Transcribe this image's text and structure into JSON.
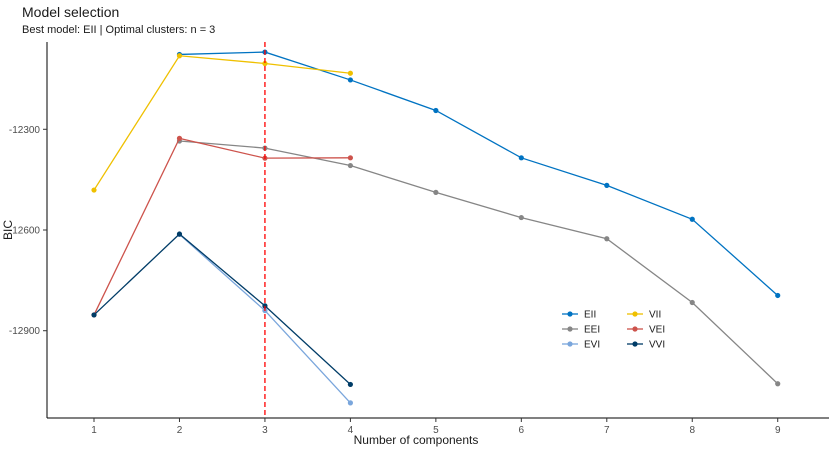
{
  "chart_data": {
    "type": "line",
    "title": "Model selection",
    "subtitle": "Best model: EII | Optimal clusters: n = 3",
    "xlabel": "Number of components",
    "ylabel": "BIC",
    "x_ticks": [
      1,
      2,
      3,
      4,
      5,
      6,
      7,
      8,
      9
    ],
    "y_ticks": [
      -12900,
      -12600,
      -12300
    ],
    "xlim": [
      0.45,
      9.6
    ],
    "ylim": [
      -13160,
      -12040
    ],
    "optimal_x": 3,
    "legend_position": "bottom-right",
    "series": [
      {
        "name": "EII",
        "color": "#0073C2",
        "x": [
          1,
          2,
          3,
          4,
          5,
          6,
          7,
          8,
          9
        ],
        "y": [
          null,
          -12077,
          -12070,
          -12153,
          -12244,
          -12385,
          -12467,
          -12568,
          -12795
        ]
      },
      {
        "name": "VII",
        "color": "#EFC000",
        "x": [
          1,
          2,
          3,
          4
        ],
        "y": [
          -12481,
          -12081,
          -12104,
          -12133
        ]
      },
      {
        "name": "EEI",
        "color": "#868686",
        "x": [
          1,
          2,
          3,
          4,
          5,
          6,
          7,
          8,
          9
        ],
        "y": [
          null,
          -12335,
          -12356,
          -12408,
          -12488,
          -12563,
          -12626,
          -12816,
          -13058
        ]
      },
      {
        "name": "VEI",
        "color": "#CD534C",
        "x": [
          1,
          2,
          3,
          4
        ],
        "y": [
          -12853,
          -12327,
          -12386,
          -12385
        ]
      },
      {
        "name": "EVI",
        "color": "#7AA6DC",
        "x": [
          1,
          2,
          3,
          4
        ],
        "y": [
          null,
          -12613,
          -12840,
          -13115
        ]
      },
      {
        "name": "VVI",
        "color": "#003C67",
        "x": [
          1,
          2,
          3,
          4
        ],
        "y": [
          -12853,
          -12612,
          -12826,
          -13060
        ]
      }
    ]
  }
}
